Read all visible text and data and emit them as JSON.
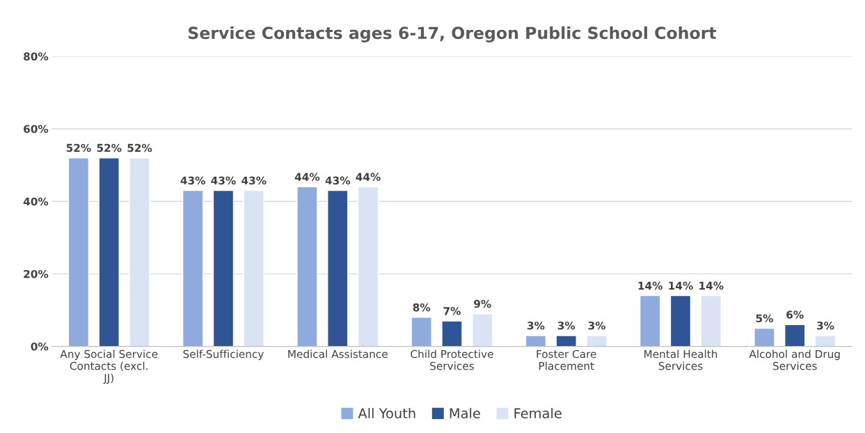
{
  "chart_data": {
    "type": "bar",
    "title": "Service Contacts ages 6-17, Oregon Public School Cohort",
    "categories": [
      "Any Social Service Contacts (excl. JJ)",
      "Self-Sufficiency",
      "Medical Assistance",
      "Child Protective Services",
      "Foster Care Placement",
      "Mental Health Services",
      "Alcohol and Drug Services"
    ],
    "series": [
      {
        "name": "All Youth",
        "color": "#8faadc",
        "values": [
          52,
          43,
          44,
          8,
          3,
          14,
          5
        ],
        "value_labels": [
          "52%",
          "43%",
          "44%",
          "8%",
          "3%",
          "14%",
          "5%"
        ]
      },
      {
        "name": "Male",
        "color": "#2f5597",
        "values": [
          52,
          43,
          43,
          7,
          3,
          14,
          6
        ],
        "value_labels": [
          "52%",
          "43%",
          "43%",
          "7%",
          "3%",
          "14%",
          "6%"
        ]
      },
      {
        "name": "Female",
        "color": "#dae3f3",
        "values": [
          52,
          43,
          44,
          9,
          3,
          14,
          3
        ],
        "value_labels": [
          "52%",
          "43%",
          "44%",
          "9%",
          "3%",
          "14%",
          "3%"
        ]
      }
    ],
    "ylim": [
      0,
      80
    ],
    "yticks": [
      {
        "value": 0,
        "label": "0%"
      },
      {
        "value": 20,
        "label": "20%"
      },
      {
        "value": 40,
        "label": "40%"
      },
      {
        "value": 60,
        "label": "60%"
      },
      {
        "value": 80,
        "label": "80%"
      }
    ],
    "grid": "y",
    "legend": "bottom"
  }
}
